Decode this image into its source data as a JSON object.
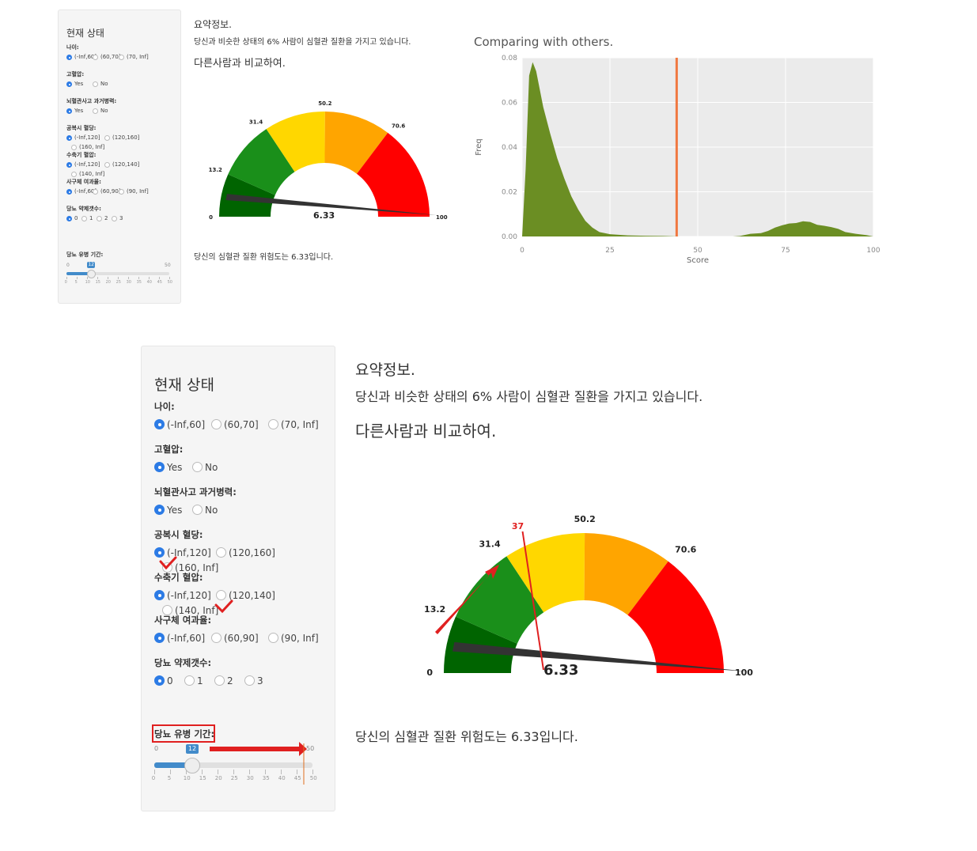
{
  "sidebar": {
    "title": "현재 상태",
    "sections": [
      {
        "label": "나이:",
        "options": [
          "(-Inf,60]",
          "(60,70]",
          "(70, Inf]"
        ],
        "selected": 0
      },
      {
        "label": "고혈압:",
        "options": [
          "Yes",
          "No"
        ],
        "selected": 0
      },
      {
        "label": "뇌혈관사고 과거병력:",
        "options": [
          "Yes",
          "No"
        ],
        "selected": 0
      },
      {
        "label": "공복시 혈당:",
        "options": [
          "(-Inf,120]",
          "(120,160]",
          "(160, Inf]"
        ],
        "selected": 0
      },
      {
        "label": "수축기 혈압:",
        "options": [
          "(-Inf,120]",
          "(120,140]",
          "(140, Inf]"
        ],
        "selected": 0
      },
      {
        "label": "사구체 여과율:",
        "options": [
          "(-Inf,60]",
          "(60,90]",
          "(90, Inf]"
        ],
        "selected": 0
      },
      {
        "label": "당뇨 약제갯수:",
        "options": [
          "0",
          "1",
          "2",
          "3"
        ],
        "selected": 0
      }
    ],
    "slider": {
      "label": "당뇨 유병 기간:",
      "min": "0",
      "max": "50",
      "value": "12",
      "ticks": [
        "0",
        "5",
        "10",
        "15",
        "20",
        "25",
        "30",
        "35",
        "40",
        "45",
        "50"
      ]
    }
  },
  "summary": {
    "heading": "요약정보.",
    "sentence": "당신과 비슷한 상태의 6% 사람이 심혈관 질환을 가지고 있습니다.",
    "compare_heading": "다른사람과 비교하여.",
    "risk_sentence": "당신의 심혈관 질환 위험도는 6.33입니다."
  },
  "gauge": {
    "value": 6.33,
    "value_label": "6.33",
    "breaks": [
      0,
      13.2,
      31.4,
      50.2,
      70.6,
      100
    ],
    "break_labels": [
      "0",
      "13.2",
      "31.4",
      "50.2",
      "70.6",
      "100"
    ],
    "colors": [
      "#006400",
      "#1a8f1a",
      "#ffd700",
      "#ffa500",
      "#ff0000"
    ],
    "annotation_value": 37,
    "annotation_label": "37"
  },
  "chart_data": {
    "type": "area",
    "title": "Comparing with others.",
    "xlabel": "Score",
    "ylabel": "Freq",
    "xlim": [
      0,
      100
    ],
    "ylim": [
      0,
      0.08
    ],
    "x_ticks": [
      "0",
      "25",
      "50",
      "75",
      "100"
    ],
    "y_ticks": [
      "0.00",
      "0.02",
      "0.04",
      "0.06",
      "0.08"
    ],
    "grid": true,
    "fill_color": "#6b8e23",
    "marker_line": {
      "x": 44,
      "color": "#f07840"
    },
    "series": [
      {
        "x": [
          0,
          1,
          2,
          3,
          4,
          5,
          6,
          8,
          10,
          12,
          14,
          16,
          18,
          20,
          22,
          25,
          30,
          35,
          40,
          45,
          50,
          55,
          60,
          62,
          65,
          68,
          70,
          72,
          74,
          76,
          78,
          80,
          82,
          84,
          86,
          88,
          90,
          92,
          95,
          98,
          100
        ],
        "y": [
          0.0,
          0.03,
          0.072,
          0.078,
          0.074,
          0.066,
          0.058,
          0.046,
          0.035,
          0.026,
          0.018,
          0.012,
          0.007,
          0.004,
          0.002,
          0.001,
          0.0005,
          0.0003,
          0.0002,
          0.0,
          0.0,
          0.0,
          0.0,
          0.0002,
          0.0012,
          0.0015,
          0.0025,
          0.004,
          0.005,
          0.0058,
          0.006,
          0.0068,
          0.0065,
          0.0052,
          0.0048,
          0.0042,
          0.0034,
          0.002,
          0.0012,
          0.0006,
          0.0
        ]
      }
    ]
  }
}
